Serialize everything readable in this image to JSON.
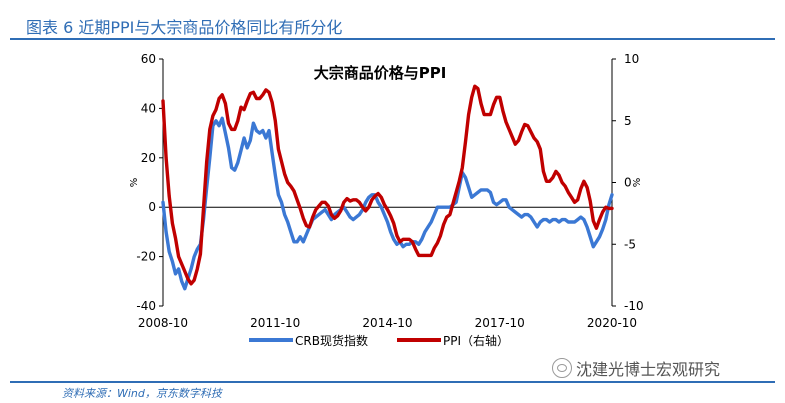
{
  "figure": {
    "title": "图表 6 近期PPI与大宗商品价格同比有所分化",
    "source": "资料来源：Wind，京东数字科技",
    "watermark": "沈建光博士宏观研究",
    "watermark_icon": "wechat-icon",
    "accent_color": "#2f6db5"
  },
  "chart_data": {
    "type": "line",
    "title": "大宗商品价格与PPI",
    "x_ticks": [
      "2008-10",
      "2011-10",
      "2014-10",
      "2017-10",
      "2020-10"
    ],
    "x_range": [
      "2008-10",
      "2020-10"
    ],
    "left_axis": {
      "unit": "%",
      "ylim": [
        -40,
        60
      ],
      "ticks": [
        -40,
        -20,
        0,
        20,
        40,
        60
      ]
    },
    "right_axis": {
      "unit": "%",
      "ylim": [
        -10,
        10
      ],
      "ticks": [
        -10,
        -5,
        0,
        5,
        10
      ]
    },
    "grid": false,
    "legend_position": "bottom",
    "series": [
      {
        "name": "CRB现货指数",
        "axis": "left",
        "color": "#3b78d4",
        "points": [
          [
            "2008-10",
            2
          ],
          [
            "2008-11",
            -10
          ],
          [
            "2008-12",
            -18
          ],
          [
            "2009-01",
            -22
          ],
          [
            "2009-02",
            -27
          ],
          [
            "2009-03",
            -25
          ],
          [
            "2009-04",
            -30
          ],
          [
            "2009-05",
            -33
          ],
          [
            "2009-06",
            -29
          ],
          [
            "2009-07",
            -25
          ],
          [
            "2009-08",
            -20
          ],
          [
            "2009-09",
            -17
          ],
          [
            "2009-10",
            -15
          ],
          [
            "2009-11",
            -5
          ],
          [
            "2009-12",
            8
          ],
          [
            "2010-01",
            20
          ],
          [
            "2010-02",
            33
          ],
          [
            "2010-03",
            35
          ],
          [
            "2010-04",
            33
          ],
          [
            "2010-05",
            36
          ],
          [
            "2010-06",
            30
          ],
          [
            "2010-07",
            24
          ],
          [
            "2010-08",
            16
          ],
          [
            "2010-09",
            15
          ],
          [
            "2010-10",
            18
          ],
          [
            "2010-11",
            23
          ],
          [
            "2010-12",
            28
          ],
          [
            "2011-01",
            24
          ],
          [
            "2011-02",
            27
          ],
          [
            "2011-03",
            34
          ],
          [
            "2011-04",
            31
          ],
          [
            "2011-05",
            30
          ],
          [
            "2011-06",
            31
          ],
          [
            "2011-07",
            28
          ],
          [
            "2011-08",
            31
          ],
          [
            "2011-09",
            22
          ],
          [
            "2011-10",
            13
          ],
          [
            "2011-11",
            5
          ],
          [
            "2011-12",
            2
          ],
          [
            "2012-01",
            -3
          ],
          [
            "2012-02",
            -6
          ],
          [
            "2012-03",
            -10
          ],
          [
            "2012-04",
            -14
          ],
          [
            "2012-05",
            -14
          ],
          [
            "2012-06",
            -12
          ],
          [
            "2012-07",
            -14
          ],
          [
            "2012-08",
            -11
          ],
          [
            "2012-09",
            -8
          ],
          [
            "2012-10",
            -5
          ],
          [
            "2012-11",
            -4
          ],
          [
            "2012-12",
            -3
          ],
          [
            "2013-01",
            -2
          ],
          [
            "2013-02",
            -1
          ],
          [
            "2013-03",
            -3
          ],
          [
            "2013-04",
            -5
          ],
          [
            "2013-05",
            -3
          ],
          [
            "2013-06",
            -2
          ],
          [
            "2013-07",
            -1
          ],
          [
            "2013-08",
            0
          ],
          [
            "2013-09",
            -2
          ],
          [
            "2013-10",
            -4
          ],
          [
            "2013-11",
            -5
          ],
          [
            "2013-12",
            -4
          ],
          [
            "2014-01",
            -3
          ],
          [
            "2014-02",
            -1
          ],
          [
            "2014-03",
            2
          ],
          [
            "2014-04",
            4
          ],
          [
            "2014-05",
            5
          ],
          [
            "2014-06",
            5
          ],
          [
            "2014-07",
            2
          ],
          [
            "2014-08",
            0
          ],
          [
            "2014-09",
            -3
          ],
          [
            "2014-10",
            -6
          ],
          [
            "2014-11",
            -10
          ],
          [
            "2014-12",
            -13
          ],
          [
            "2015-01",
            -15
          ],
          [
            "2015-02",
            -14
          ],
          [
            "2015-03",
            -16
          ],
          [
            "2015-04",
            -15
          ],
          [
            "2015-05",
            -15
          ],
          [
            "2015-06",
            -14
          ],
          [
            "2015-07",
            -14
          ],
          [
            "2015-08",
            -15
          ],
          [
            "2015-09",
            -13
          ],
          [
            "2015-10",
            -10
          ],
          [
            "2015-11",
            -8
          ],
          [
            "2015-12",
            -6
          ],
          [
            "2016-01",
            -3
          ],
          [
            "2016-02",
            0
          ],
          [
            "2016-03",
            0
          ],
          [
            "2016-04",
            0
          ],
          [
            "2016-05",
            0
          ],
          [
            "2016-06",
            0
          ],
          [
            "2016-07",
            1
          ],
          [
            "2016-08",
            2
          ],
          [
            "2016-09",
            8
          ],
          [
            "2016-10",
            14
          ],
          [
            "2016-11",
            12
          ],
          [
            "2016-12",
            8
          ],
          [
            "2017-01",
            4
          ],
          [
            "2017-02",
            5
          ],
          [
            "2017-03",
            6
          ],
          [
            "2017-04",
            7
          ],
          [
            "2017-05",
            7
          ],
          [
            "2017-06",
            7
          ],
          [
            "2017-07",
            6
          ],
          [
            "2017-08",
            2
          ],
          [
            "2017-09",
            1
          ],
          [
            "2017-10",
            2
          ],
          [
            "2017-11",
            3
          ],
          [
            "2017-12",
            3
          ],
          [
            "2018-01",
            0
          ],
          [
            "2018-02",
            -1
          ],
          [
            "2018-03",
            -2
          ],
          [
            "2018-04",
            -3
          ],
          [
            "2018-05",
            -4
          ],
          [
            "2018-06",
            -3
          ],
          [
            "2018-07",
            -3
          ],
          [
            "2018-08",
            -4
          ],
          [
            "2018-09",
            -6
          ],
          [
            "2018-10",
            -8
          ],
          [
            "2018-11",
            -6
          ],
          [
            "2018-12",
            -5
          ],
          [
            "2019-01",
            -5
          ],
          [
            "2019-02",
            -6
          ],
          [
            "2019-03",
            -5
          ],
          [
            "2019-04",
            -5
          ],
          [
            "2019-05",
            -6
          ],
          [
            "2019-06",
            -5
          ],
          [
            "2019-07",
            -5
          ],
          [
            "2019-08",
            -6
          ],
          [
            "2019-09",
            -6
          ],
          [
            "2019-10",
            -6
          ],
          [
            "2019-11",
            -5
          ],
          [
            "2019-12",
            -4
          ],
          [
            "2020-01",
            -5
          ],
          [
            "2020-02",
            -8
          ],
          [
            "2020-03",
            -12
          ],
          [
            "2020-04",
            -16
          ],
          [
            "2020-05",
            -14
          ],
          [
            "2020-06",
            -12
          ],
          [
            "2020-07",
            -9
          ],
          [
            "2020-08",
            -5
          ],
          [
            "2020-09",
            1
          ],
          [
            "2020-10",
            5
          ]
        ]
      },
      {
        "name": "PPI（右轴）",
        "axis": "right",
        "color": "#c00000",
        "points": [
          [
            "2008-10",
            6.6
          ],
          [
            "2008-11",
            2.0
          ],
          [
            "2008-12",
            -1.1
          ],
          [
            "2009-01",
            -3.3
          ],
          [
            "2009-02",
            -4.5
          ],
          [
            "2009-03",
            -6.0
          ],
          [
            "2009-04",
            -6.6
          ],
          [
            "2009-05",
            -7.2
          ],
          [
            "2009-06",
            -7.8
          ],
          [
            "2009-07",
            -8.2
          ],
          [
            "2009-08",
            -7.9
          ],
          [
            "2009-09",
            -7.0
          ],
          [
            "2009-10",
            -5.8
          ],
          [
            "2009-11",
            -2.1
          ],
          [
            "2009-12",
            1.7
          ],
          [
            "2010-01",
            4.3
          ],
          [
            "2010-02",
            5.4
          ],
          [
            "2010-03",
            5.9
          ],
          [
            "2010-04",
            6.8
          ],
          [
            "2010-05",
            7.1
          ],
          [
            "2010-06",
            6.4
          ],
          [
            "2010-07",
            4.8
          ],
          [
            "2010-08",
            4.3
          ],
          [
            "2010-09",
            4.3
          ],
          [
            "2010-10",
            5.0
          ],
          [
            "2010-11",
            6.1
          ],
          [
            "2010-12",
            5.9
          ],
          [
            "2011-01",
            6.6
          ],
          [
            "2011-02",
            7.2
          ],
          [
            "2011-03",
            7.3
          ],
          [
            "2011-04",
            6.8
          ],
          [
            "2011-05",
            6.8
          ],
          [
            "2011-06",
            7.1
          ],
          [
            "2011-07",
            7.5
          ],
          [
            "2011-08",
            7.3
          ],
          [
            "2011-09",
            6.5
          ],
          [
            "2011-10",
            5.0
          ],
          [
            "2011-11",
            2.7
          ],
          [
            "2011-12",
            1.7
          ],
          [
            "2012-01",
            0.7
          ],
          [
            "2012-02",
            0.0
          ],
          [
            "2012-03",
            -0.3
          ],
          [
            "2012-04",
            -0.7
          ],
          [
            "2012-05",
            -1.4
          ],
          [
            "2012-06",
            -2.1
          ],
          [
            "2012-07",
            -2.9
          ],
          [
            "2012-08",
            -3.5
          ],
          [
            "2012-09",
            -3.6
          ],
          [
            "2012-10",
            -2.8
          ],
          [
            "2012-11",
            -2.2
          ],
          [
            "2012-12",
            -1.9
          ],
          [
            "2013-01",
            -1.6
          ],
          [
            "2013-02",
            -1.6
          ],
          [
            "2013-03",
            -1.9
          ],
          [
            "2013-04",
            -2.6
          ],
          [
            "2013-05",
            -2.9
          ],
          [
            "2013-06",
            -2.7
          ],
          [
            "2013-07",
            -2.3
          ],
          [
            "2013-08",
            -1.6
          ],
          [
            "2013-09",
            -1.3
          ],
          [
            "2013-10",
            -1.5
          ],
          [
            "2013-11",
            -1.4
          ],
          [
            "2013-12",
            -1.4
          ],
          [
            "2014-01",
            -1.6
          ],
          [
            "2014-02",
            -2.0
          ],
          [
            "2014-03",
            -2.3
          ],
          [
            "2014-04",
            -2.0
          ],
          [
            "2014-05",
            -1.4
          ],
          [
            "2014-06",
            -1.1
          ],
          [
            "2014-07",
            -0.9
          ],
          [
            "2014-08",
            -1.2
          ],
          [
            "2014-09",
            -1.8
          ],
          [
            "2014-10",
            -2.2
          ],
          [
            "2014-11",
            -2.7
          ],
          [
            "2014-12",
            -3.3
          ],
          [
            "2015-01",
            -4.3
          ],
          [
            "2015-02",
            -4.8
          ],
          [
            "2015-03",
            -4.6
          ],
          [
            "2015-04",
            -4.6
          ],
          [
            "2015-05",
            -4.6
          ],
          [
            "2015-06",
            -4.8
          ],
          [
            "2015-07",
            -5.4
          ],
          [
            "2015-08",
            -5.9
          ],
          [
            "2015-09",
            -5.9
          ],
          [
            "2015-10",
            -5.9
          ],
          [
            "2015-11",
            -5.9
          ],
          [
            "2015-12",
            -5.9
          ],
          [
            "2016-01",
            -5.3
          ],
          [
            "2016-02",
            -4.9
          ],
          [
            "2016-03",
            -4.3
          ],
          [
            "2016-04",
            -3.4
          ],
          [
            "2016-05",
            -2.8
          ],
          [
            "2016-06",
            -2.6
          ],
          [
            "2016-07",
            -1.7
          ],
          [
            "2016-08",
            -0.8
          ],
          [
            "2016-09",
            0.1
          ],
          [
            "2016-10",
            1.2
          ],
          [
            "2016-11",
            3.3
          ],
          [
            "2016-12",
            5.5
          ],
          [
            "2017-01",
            6.9
          ],
          [
            "2017-02",
            7.8
          ],
          [
            "2017-03",
            7.6
          ],
          [
            "2017-04",
            6.4
          ],
          [
            "2017-05",
            5.5
          ],
          [
            "2017-06",
            5.5
          ],
          [
            "2017-07",
            5.5
          ],
          [
            "2017-08",
            6.3
          ],
          [
            "2017-09",
            6.9
          ],
          [
            "2017-10",
            6.9
          ],
          [
            "2017-11",
            5.8
          ],
          [
            "2017-12",
            4.9
          ],
          [
            "2018-01",
            4.3
          ],
          [
            "2018-02",
            3.7
          ],
          [
            "2018-03",
            3.1
          ],
          [
            "2018-04",
            3.4
          ],
          [
            "2018-05",
            4.1
          ],
          [
            "2018-06",
            4.7
          ],
          [
            "2018-07",
            4.6
          ],
          [
            "2018-08",
            4.1
          ],
          [
            "2018-09",
            3.6
          ],
          [
            "2018-10",
            3.3
          ],
          [
            "2018-11",
            2.7
          ],
          [
            "2018-12",
            0.9
          ],
          [
            "2019-01",
            0.1
          ],
          [
            "2019-02",
            0.1
          ],
          [
            "2019-03",
            0.4
          ],
          [
            "2019-04",
            0.9
          ],
          [
            "2019-05",
            0.6
          ],
          [
            "2019-06",
            0.0
          ],
          [
            "2019-07",
            -0.3
          ],
          [
            "2019-08",
            -0.8
          ],
          [
            "2019-09",
            -1.2
          ],
          [
            "2019-10",
            -1.6
          ],
          [
            "2019-11",
            -1.4
          ],
          [
            "2019-12",
            -0.5
          ],
          [
            "2020-01",
            0.1
          ],
          [
            "2020-02",
            -0.4
          ],
          [
            "2020-03",
            -1.5
          ],
          [
            "2020-04",
            -3.1
          ],
          [
            "2020-05",
            -3.7
          ],
          [
            "2020-06",
            -3.0
          ],
          [
            "2020-07",
            -2.4
          ],
          [
            "2020-08",
            -2.0
          ],
          [
            "2020-09",
            -2.1
          ],
          [
            "2020-10",
            -2.1
          ]
        ]
      }
    ]
  }
}
